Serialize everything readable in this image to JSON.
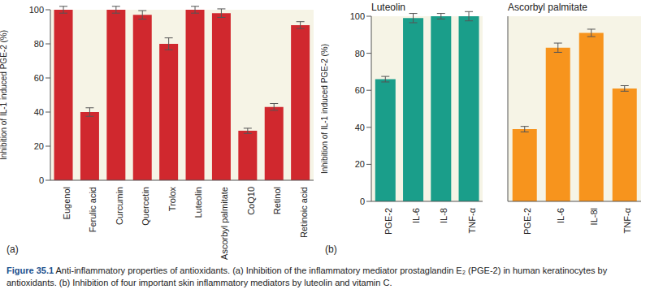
{
  "figure": {
    "panel_labels": [
      "(a)",
      "(b)"
    ],
    "caption_label": "Figure 35.1",
    "caption": "Anti-inflammatory properties of antioxidants. (a) Inhibition of the inflammatory mediator prostaglandin E₂ (PGE-2) in human keratinocytes by antioxidants. (b) Inhibition of four important skin inflammatory mediators by luteolin and vitamin C."
  },
  "chart_data": [
    {
      "type": "bar",
      "y_label": "Inhibition of IL-1 induced PGE-2 (%)",
      "categories": [
        "Eugenol",
        "Ferulic acid",
        "Curcumin",
        "Quercetin",
        "Trolox",
        "Luteolin",
        "Ascorbyl palmitate",
        "CoQ10",
        "Retinol",
        "Retinoic acid"
      ],
      "values": [
        100,
        40,
        100,
        97,
        80,
        100,
        98,
        29,
        43,
        91
      ],
      "errors": [
        2,
        2.5,
        2,
        2.5,
        3.5,
        2,
        2.5,
        1.5,
        2,
        2
      ],
      "color": "#d0282e",
      "ylim": [
        0,
        100
      ],
      "yticks": [
        0,
        20,
        40,
        60,
        80,
        100
      ],
      "grid": false
    },
    {
      "type": "bar",
      "title": "Luteolin",
      "y_label": "Inhibition of IL-1 induced PGE-2 (%)",
      "categories": [
        "PGE-2",
        "IL-6",
        "IL-8",
        "TNF-α"
      ],
      "values": [
        66,
        99,
        100,
        100
      ],
      "errors": [
        1.5,
        2.5,
        1.5,
        2.5
      ],
      "color": "#1a9e8a",
      "ylim": [
        0,
        100
      ],
      "yticks": [
        0,
        20,
        40,
        60,
        80,
        100
      ],
      "grid": false
    },
    {
      "type": "bar",
      "title": "Ascorbyl palmitate",
      "categories": [
        "PGE-2",
        "IL-6",
        "IL-8l",
        "TNF-α"
      ],
      "values": [
        39,
        83,
        91,
        61
      ],
      "errors": [
        1.5,
        2.5,
        2,
        1.5
      ],
      "color": "#f7941d",
      "ylim": [
        0,
        100
      ],
      "yticks": [
        0,
        20,
        40,
        60,
        80,
        100
      ],
      "grid": false,
      "tick_labels": "x"
    }
  ]
}
